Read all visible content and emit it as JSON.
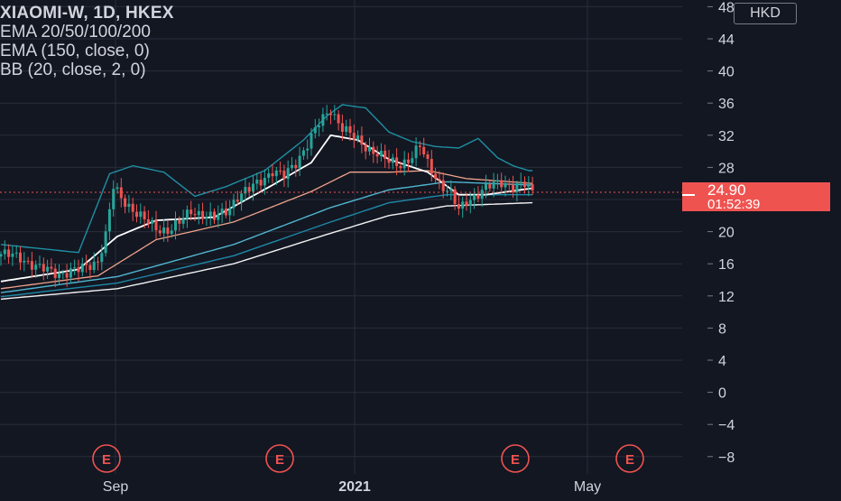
{
  "legend": {
    "title": "XIAOMI-W, 1D, HKEX",
    "lines": [
      "EMA 20/50/100/200",
      "EMA (150, close, 0)",
      "BB (20, close, 2, 0)"
    ]
  },
  "currency": "HKD",
  "last_price": {
    "value": "24.90",
    "countdown": "01:52:39",
    "color": "#ef5350"
  },
  "earnings_marker": "E",
  "colors": {
    "background": "#131722",
    "up": "#26a69a",
    "down": "#ef5350",
    "ema20": "#ffffff",
    "ema50": "#f0a48c",
    "ema100": "#4fb6d0",
    "ema150": "#1e88a8",
    "ema200": "#f2f2f2",
    "bb": "#1f8fa3",
    "grid": "#2a2e39",
    "axis_text": "#d1d4dc"
  },
  "chart_data": {
    "type": "candlestick",
    "symbol": "XIAOMI-W",
    "interval": "1D",
    "exchange": "HKEX",
    "y_ticks": [
      48,
      44,
      40,
      36,
      32,
      28,
      24,
      20,
      16,
      12,
      8,
      4,
      0,
      -4,
      -8
    ],
    "ylim": [
      -8.6,
      48.2
    ],
    "x_labels": [
      "Sep",
      "2021",
      "May"
    ],
    "grid": true,
    "earnings_events": 4,
    "close_trace": [
      [
        0,
        17.2
      ],
      [
        5,
        16.8
      ],
      [
        10,
        15.4
      ],
      [
        15,
        14.8
      ],
      [
        20,
        15.2
      ],
      [
        25,
        16.4
      ],
      [
        27,
        19.5
      ],
      [
        29,
        25.5
      ],
      [
        31,
        24.2
      ],
      [
        34,
        22.8
      ],
      [
        37,
        21.4
      ],
      [
        40,
        20.4
      ],
      [
        43,
        20.2
      ],
      [
        46,
        21.0
      ],
      [
        49,
        22.6
      ],
      [
        52,
        22.2
      ],
      [
        55,
        21.6
      ],
      [
        58,
        22.6
      ],
      [
        61,
        24.4
      ],
      [
        64,
        25.2
      ],
      [
        67,
        26.4
      ],
      [
        70,
        27.6
      ],
      [
        73,
        26.8
      ],
      [
        76,
        28.6
      ],
      [
        79,
        31.0
      ],
      [
        82,
        33.4
      ],
      [
        85,
        35.2
      ],
      [
        88,
        33.0
      ],
      [
        91,
        31.6
      ],
      [
        94,
        30.6
      ],
      [
        97,
        29.8
      ],
      [
        100,
        28.6
      ],
      [
        103,
        28.4
      ],
      [
        106,
        29.4
      ],
      [
        108,
        30.6
      ],
      [
        110,
        28.4
      ],
      [
        113,
        26.2
      ],
      [
        116,
        24.6
      ],
      [
        118,
        22.6
      ],
      [
        120,
        23.8
      ],
      [
        123,
        24.8
      ],
      [
        126,
        25.6
      ],
      [
        129,
        26.2
      ],
      [
        132,
        25.6
      ],
      [
        135,
        25.8
      ],
      [
        137,
        24.9
      ]
    ],
    "ema20": [
      [
        0,
        13.8
      ],
      [
        20,
        15.3
      ],
      [
        30,
        19.4
      ],
      [
        40,
        21.4
      ],
      [
        55,
        21.8
      ],
      [
        70,
        25.8
      ],
      [
        80,
        28.6
      ],
      [
        85,
        32.0
      ],
      [
        92,
        31.4
      ],
      [
        100,
        29.0
      ],
      [
        110,
        27.4
      ],
      [
        118,
        24.6
      ],
      [
        125,
        24.6
      ],
      [
        137,
        25.4
      ]
    ],
    "ema50": [
      [
        0,
        12.9
      ],
      [
        25,
        14.5
      ],
      [
        40,
        19.0
      ],
      [
        60,
        21.2
      ],
      [
        80,
        25.0
      ],
      [
        90,
        27.4
      ],
      [
        100,
        27.4
      ],
      [
        110,
        27.6
      ],
      [
        120,
        26.6
      ],
      [
        137,
        26.0
      ]
    ],
    "ema100": [
      [
        0,
        12.4
      ],
      [
        30,
        14.4
      ],
      [
        60,
        18.4
      ],
      [
        85,
        23.0
      ],
      [
        100,
        25.2
      ],
      [
        115,
        26.2
      ],
      [
        137,
        25.8
      ]
    ],
    "ema150": [
      [
        0,
        11.9
      ],
      [
        30,
        13.6
      ],
      [
        60,
        17.0
      ],
      [
        85,
        21.2
      ],
      [
        100,
        23.6
      ],
      [
        115,
        24.6
      ],
      [
        137,
        24.6
      ]
    ],
    "ema200": [
      [
        0,
        11.6
      ],
      [
        30,
        12.9
      ],
      [
        60,
        16.0
      ],
      [
        85,
        19.8
      ],
      [
        100,
        22.0
      ],
      [
        115,
        23.2
      ],
      [
        137,
        23.6
      ]
    ],
    "bb_upper": [
      [
        0,
        18.4
      ],
      [
        20,
        17.4
      ],
      [
        28,
        27.2
      ],
      [
        34,
        28.2
      ],
      [
        42,
        27.4
      ],
      [
        50,
        24.4
      ],
      [
        58,
        25.6
      ],
      [
        68,
        27.6
      ],
      [
        78,
        31.4
      ],
      [
        84,
        34.4
      ],
      [
        88,
        35.8
      ],
      [
        94,
        35.4
      ],
      [
        100,
        32.4
      ],
      [
        106,
        31.2
      ],
      [
        112,
        30.6
      ],
      [
        118,
        30.4
      ],
      [
        123,
        31.6
      ],
      [
        128,
        29.2
      ],
      [
        132,
        28.2
      ],
      [
        136,
        27.6
      ]
    ]
  }
}
